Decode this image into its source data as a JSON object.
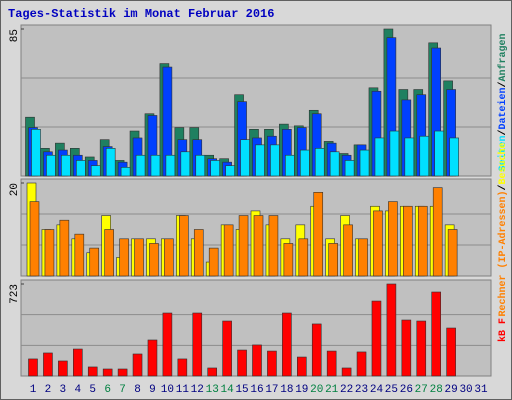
{
  "chart_data": [
    {
      "type": "bar",
      "title": "Tages-Statistik im Monat Februar 2016",
      "ylim": [
        0,
        85
      ],
      "yticks": [
        85
      ],
      "series": [
        {
          "name": "Anfragen",
          "color": "#1f8060",
          "values": [
            34,
            16,
            19,
            16,
            11,
            21,
            9,
            26,
            36,
            65,
            28,
            28,
            12,
            10,
            47,
            27,
            27,
            30,
            29,
            38,
            20,
            13,
            18,
            51,
            85,
            50,
            50,
            77,
            55,
            null,
            null
          ]
        },
        {
          "name": "Dateien",
          "color": "#0040ff",
          "values": [
            28,
            14,
            15,
            12,
            9,
            17,
            8,
            22,
            35,
            63,
            21,
            21,
            10,
            8,
            43,
            22,
            23,
            27,
            28,
            36,
            19,
            12,
            18,
            49,
            80,
            44,
            47,
            74,
            50,
            null,
            null
          ]
        },
        {
          "name": "Seiten",
          "color": "#00e0ff",
          "values": [
            27,
            12,
            12,
            9,
            6,
            16,
            5,
            12,
            12,
            12,
            14,
            12,
            9,
            6,
            21,
            18,
            18,
            12,
            15,
            16,
            14,
            9,
            15,
            22,
            26,
            22,
            23,
            26,
            22,
            null,
            null
          ]
        }
      ]
    },
    {
      "type": "bar",
      "ylim": [
        0,
        20
      ],
      "yticks": [
        20
      ],
      "series": [
        {
          "name": "Besuche",
          "color": "#ffff00",
          "values": [
            20,
            10,
            11,
            8,
            5,
            13,
            4,
            8,
            8,
            8,
            13,
            8,
            3,
            11,
            10,
            14,
            11,
            8,
            11,
            15,
            8,
            13,
            8,
            15,
            14,
            15,
            15,
            15,
            11,
            null,
            null
          ]
        },
        {
          "name": "Rechner (IP-Adressen)",
          "color": "#ff8000",
          "values": [
            16,
            10,
            12,
            9,
            6,
            10,
            8,
            8,
            7,
            8,
            13,
            10,
            6,
            11,
            13,
            13,
            13,
            7,
            8,
            18,
            7,
            11,
            8,
            14,
            16,
            15,
            15,
            19,
            10,
            null,
            null
          ]
        }
      ]
    },
    {
      "type": "bar",
      "ylim": [
        0,
        723
      ],
      "yticks": [
        723
      ],
      "categories": [
        "1",
        "2",
        "3",
        "4",
        "5",
        "6",
        "7",
        "8",
        "9",
        "10",
        "11",
        "12",
        "13",
        "14",
        "15",
        "16",
        "17",
        "18",
        "19",
        "20",
        "21",
        "22",
        "23",
        "24",
        "25",
        "26",
        "27",
        "28",
        "29",
        "30",
        "31"
      ],
      "highlight": [
        "6",
        "7",
        "13",
        "14",
        "20",
        "21",
        "27",
        "28"
      ],
      "label_color": "#000080",
      "highlight_color": "#008040",
      "legend_separator": "/",
      "series": [
        {
          "name": "kB F",
          "color": "#ff0000",
          "values": [
            134,
            181,
            118,
            212,
            71,
            55,
            55,
            173,
            283,
            495,
            134,
            495,
            63,
            432,
            204,
            244,
            196,
            495,
            149,
            409,
            196,
            63,
            189,
            589,
            723,
            440,
            432,
            660,
            377,
            null,
            null
          ]
        }
      ]
    }
  ]
}
